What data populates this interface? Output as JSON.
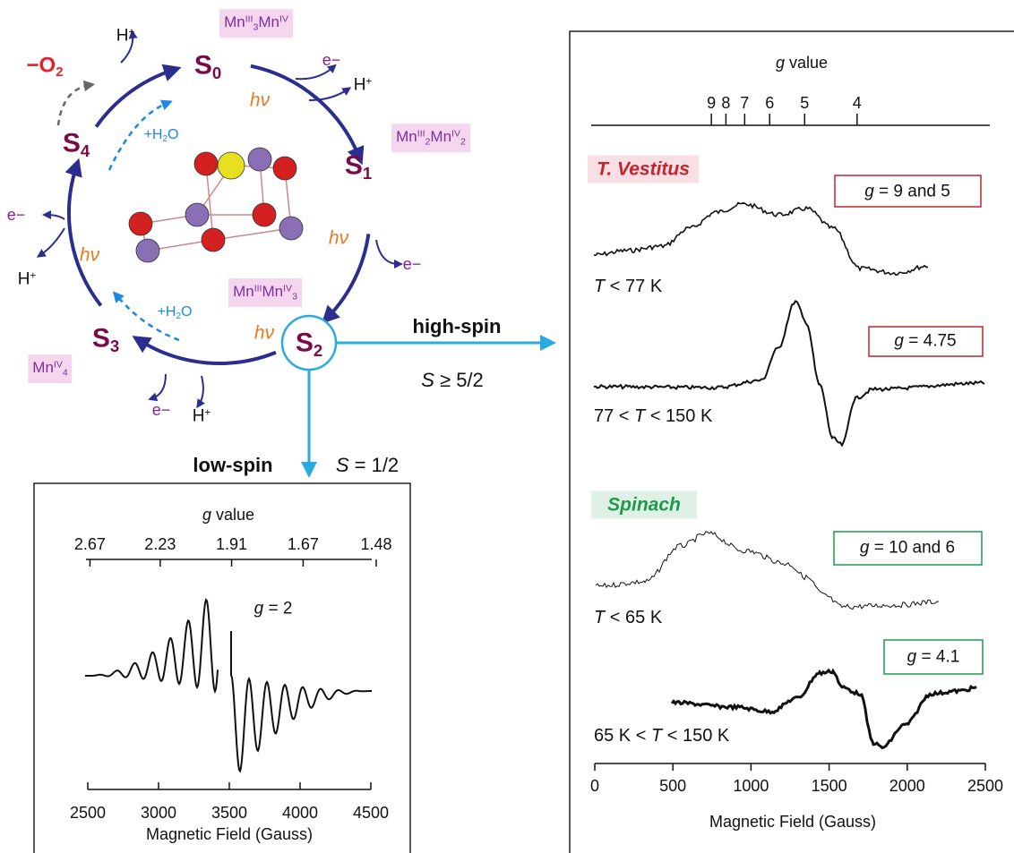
{
  "cycle": {
    "states": [
      [
        "S",
        "0"
      ],
      [
        "S",
        "1"
      ],
      [
        "S",
        "2"
      ],
      [
        "S",
        "3"
      ],
      [
        "S",
        "4"
      ]
    ],
    "oxidation_states": [
      [
        "Mn",
        "III",
        "3",
        "Mn",
        "IV"
      ],
      [
        "Mn",
        "III",
        "2",
        "Mn",
        "IV",
        "2"
      ],
      [
        "Mn",
        "III",
        "Mn",
        "IV",
        "3"
      ],
      [
        "Mn",
        "IV",
        "4"
      ]
    ],
    "light": [
      "hν",
      "hν",
      "hν",
      "hν"
    ],
    "protons": [
      [
        "H",
        "+"
      ],
      [
        "H",
        "+"
      ],
      [
        "H",
        "+"
      ],
      [
        "H",
        "+"
      ]
    ],
    "electrons": [
      "e−",
      "e−",
      "e−",
      "e−"
    ],
    "water": [
      [
        "+H",
        "2",
        "O"
      ],
      [
        "+H",
        "2",
        "O"
      ]
    ],
    "oxygen": [
      "−O",
      "2"
    ]
  },
  "branches": {
    "high_spin": {
      "label": "high-spin",
      "spin": [
        "S",
        " ≥ 5/2"
      ]
    },
    "low_spin": {
      "label": "low-spin",
      "spin": [
        "S",
        " = 1/2"
      ]
    }
  },
  "low_spin_panel": {
    "g_axis_title": [
      "g",
      " value"
    ],
    "g_ticks": [
      2.67,
      2.23,
      1.91,
      1.67,
      1.48
    ],
    "g_label": [
      "g",
      " = 2"
    ],
    "x_ticks": [
      2500,
      3000,
      3500,
      4000,
      4500
    ],
    "x_axis_title": "Magnetic Field (Gauss)"
  },
  "high_spin_panel": {
    "g_axis_title": [
      "g",
      " value"
    ],
    "g_ticks": [
      9,
      8,
      7,
      6,
      5,
      4
    ],
    "samples": [
      {
        "name": "T. Vestitus",
        "spectra": [
          {
            "g_label": [
              "g",
              " = 9 and 5"
            ],
            "temperature": [
              "T",
              " < 77 K"
            ]
          },
          {
            "g_label": [
              "g",
              " = 4.75"
            ],
            "temperature": [
              "77 < ",
              "T",
              " < 150 K"
            ]
          }
        ]
      },
      {
        "name": "Spinach",
        "spectra": [
          {
            "g_label": [
              "g",
              " = 10 and 6"
            ],
            "temperature": [
              "T",
              " < 65 K"
            ]
          },
          {
            "g_label": [
              "g",
              " = 4.1"
            ],
            "temperature": [
              "65 K < ",
              "T",
              " < 150 K"
            ]
          }
        ]
      }
    ],
    "x_ticks": [
      0,
      500,
      1000,
      1500,
      2000,
      2500
    ],
    "x_axis_title": "Magnetic Field (Gauss)"
  }
}
